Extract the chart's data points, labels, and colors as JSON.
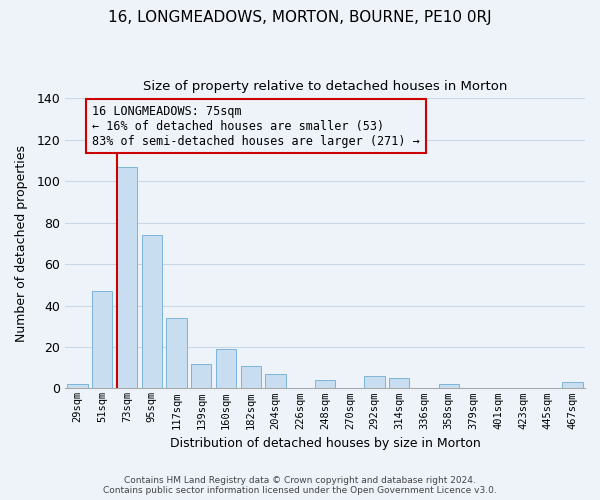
{
  "title": "16, LONGMEADOWS, MORTON, BOURNE, PE10 0RJ",
  "subtitle": "Size of property relative to detached houses in Morton",
  "xlabel": "Distribution of detached houses by size in Morton",
  "ylabel": "Number of detached properties",
  "bar_color": "#c9ddf0",
  "bar_edge_color": "#7ab5d8",
  "grid_color": "#c8d8e8",
  "annotation_line_color": "#cc0000",
  "annotation_box_edge": "#cc0000",
  "annotation_text": "16 LONGMEADOWS: 75sqm\n← 16% of detached houses are smaller (53)\n83% of semi-detached houses are larger (271) →",
  "annotation_fontsize": 8.5,
  "bin_labels": [
    "29sqm",
    "51sqm",
    "73sqm",
    "95sqm",
    "117sqm",
    "139sqm",
    "160sqm",
    "182sqm",
    "204sqm",
    "226sqm",
    "248sqm",
    "270sqm",
    "292sqm",
    "314sqm",
    "336sqm",
    "358sqm",
    "379sqm",
    "401sqm",
    "423sqm",
    "445sqm",
    "467sqm"
  ],
  "bar_heights": [
    2,
    47,
    107,
    74,
    34,
    12,
    19,
    11,
    7,
    0,
    4,
    0,
    6,
    5,
    0,
    2,
    0,
    0,
    0,
    0,
    3
  ],
  "property_bin_index": 2,
  "ylim": [
    0,
    140
  ],
  "yticks": [
    0,
    20,
    40,
    60,
    80,
    100,
    120,
    140
  ],
  "footer_line1": "Contains HM Land Registry data © Crown copyright and database right 2024.",
  "footer_line2": "Contains public sector information licensed under the Open Government Licence v3.0.",
  "background_color": "#eef3fa",
  "figsize": [
    6.0,
    5.0
  ],
  "dpi": 100
}
